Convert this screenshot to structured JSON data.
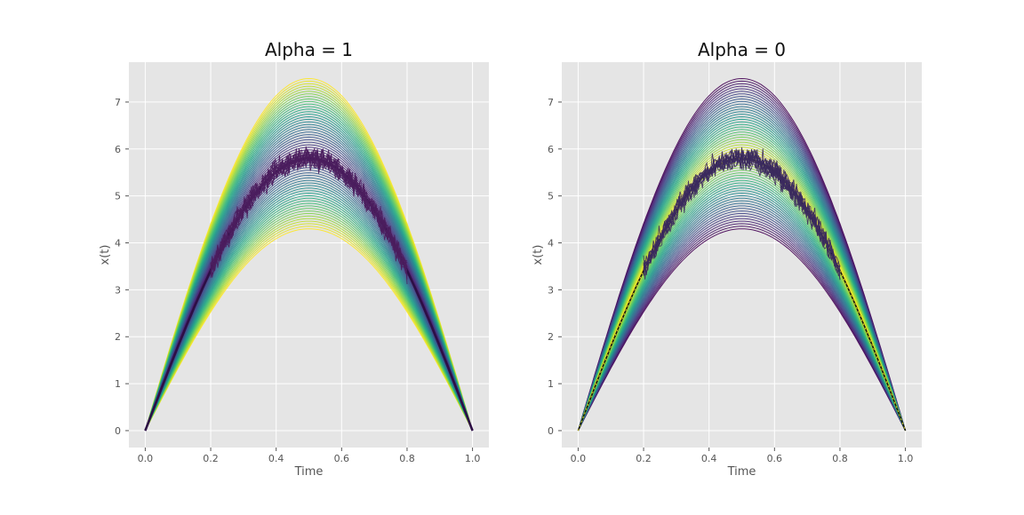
{
  "chart_data": [
    {
      "type": "line",
      "title": "Alpha = 1",
      "xlabel": "Time",
      "ylabel": "x(t)",
      "xlim": [
        -0.05,
        1.05
      ],
      "ylim": [
        -0.36,
        7.85
      ],
      "x_ticks": [
        0.0,
        0.2,
        0.4,
        0.6,
        0.8,
        1.0
      ],
      "x_tick_labels": [
        "0.0",
        "0.2",
        "0.4",
        "0.6",
        "0.8",
        "1.0"
      ],
      "y_ticks": [
        0,
        1,
        2,
        3,
        4,
        5,
        6,
        7
      ],
      "y_tick_labels": [
        "0",
        "1",
        "2",
        "3",
        "4",
        "5",
        "6",
        "7"
      ],
      "grid": true,
      "background": "#e5e5e5",
      "envelope": {
        "curve": "sine arch x(t) = A·sin(πt)",
        "peak_min": 4.3,
        "peak_max": 7.5,
        "count": 60,
        "colormap": "viridis",
        "color_order": "center dark, edges yellow"
      },
      "mean_curve": {
        "peak": 5.8,
        "color": "#2d0f45"
      },
      "noisy_paths": {
        "count": 10,
        "t_range": [
          0.2,
          0.8
        ],
        "color": "#4b1e5e",
        "approx_peak": 6.4
      }
    },
    {
      "type": "line",
      "title": "Alpha = 0",
      "xlabel": "Time",
      "ylabel": "x(t)",
      "xlim": [
        -0.05,
        1.05
      ],
      "ylim": [
        -0.36,
        7.85
      ],
      "x_ticks": [
        0.0,
        0.2,
        0.4,
        0.6,
        0.8,
        1.0
      ],
      "x_tick_labels": [
        "0.0",
        "0.2",
        "0.4",
        "0.6",
        "0.8",
        "1.0"
      ],
      "y_ticks": [
        0,
        1,
        2,
        3,
        4,
        5,
        6,
        7
      ],
      "y_tick_labels": [
        "0",
        "1",
        "2",
        "3",
        "4",
        "5",
        "6",
        "7"
      ],
      "grid": true,
      "background": "#e5e5e5",
      "envelope": {
        "curve": "sine arch x(t) = A·sin(πt)",
        "peak_min": 4.3,
        "peak_max": 7.5,
        "count": 60,
        "colormap": "viridis",
        "color_order": "center yellow, edges purple"
      },
      "mean_curve": {
        "peak": 5.8,
        "color": "#111111"
      },
      "noisy_paths": {
        "count": 10,
        "t_range": [
          0.2,
          0.8
        ],
        "color": "#3b2a5e",
        "approx_peak": 6.4
      }
    }
  ]
}
